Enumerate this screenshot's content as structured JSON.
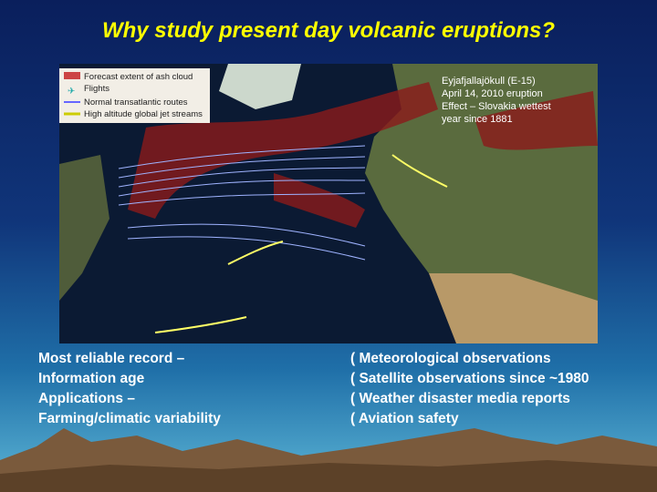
{
  "header": {
    "title": "Why study present day volcanic eruptions?"
  },
  "map": {
    "legend": [
      "Forecast extent of ash cloud",
      "Flights",
      "Normal transatlantic routes",
      "High altitude global jet streams"
    ],
    "annotation": [
      "Eyjafjallajökull (E-15)",
      "April 14, 2010 eruption",
      "Effect – Slovakia wettest",
      "year since 1881"
    ]
  },
  "left_list": [
    "Most reliable record –",
    "Information age",
    "Applications –",
    "Farming/climatic variability"
  ],
  "right_list": [
    "( Meteorological observations",
    "( Satellite observations since ~1980",
    "( Weather disaster media reports",
    "( Aviation safety"
  ]
}
